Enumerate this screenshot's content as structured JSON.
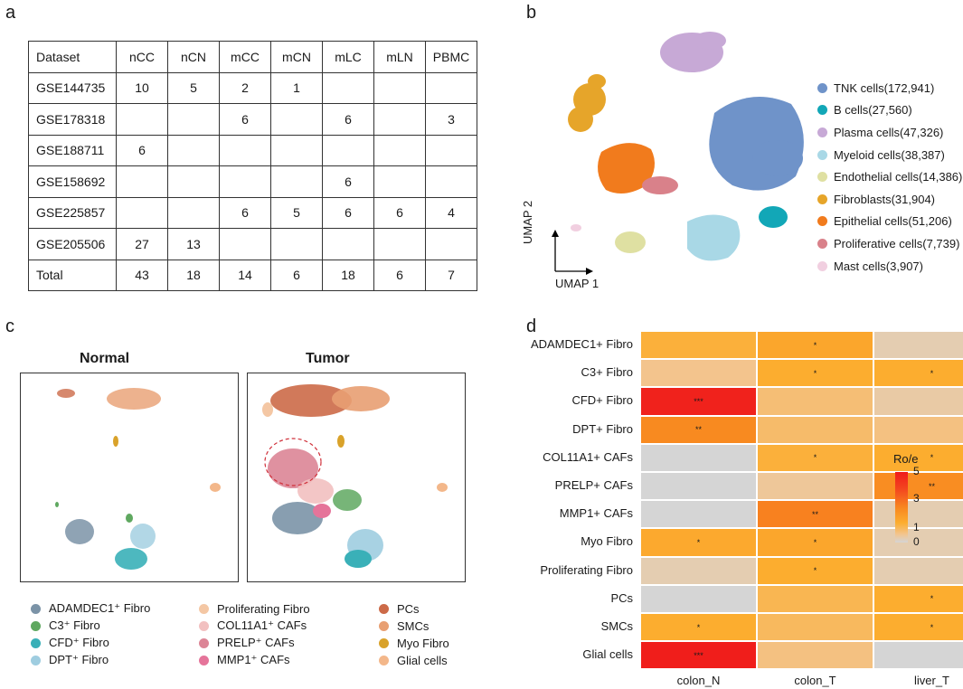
{
  "panels": {
    "a": "a",
    "b": "b",
    "c": "c",
    "d": "d"
  },
  "table": {
    "headers": [
      "Dataset",
      "nCC",
      "nCN",
      "mCC",
      "mCN",
      "mLC",
      "mLN",
      "PBMC"
    ],
    "rows": [
      [
        "GSE144735",
        "10",
        "5",
        "2",
        "1",
        "",
        "",
        ""
      ],
      [
        "GSE178318",
        "",
        "",
        "6",
        "",
        "6",
        "",
        "3"
      ],
      [
        "GSE188711",
        "6",
        "",
        "",
        "",
        "",
        "",
        ""
      ],
      [
        "GSE158692",
        "",
        "",
        "",
        "",
        "6",
        "",
        ""
      ],
      [
        "GSE225857",
        "",
        "",
        "6",
        "5",
        "6",
        "6",
        "4"
      ],
      [
        "GSE205506",
        "27",
        "13",
        "",
        "",
        "",
        "",
        ""
      ],
      [
        "Total",
        "43",
        "18",
        "14",
        "6",
        "18",
        "6",
        "7"
      ]
    ]
  },
  "umap_b": {
    "xlabel": "UMAP 1",
    "ylabel": "UMAP 2",
    "legend": [
      {
        "label": "TNK cells(172,941)",
        "color": "#6f93c9"
      },
      {
        "label": "B cells(27,560)",
        "color": "#12a7b7"
      },
      {
        "label": "Plasma cells(47,326)",
        "color": "#c7a9d6"
      },
      {
        "label": "Myeloid cells(38,387)",
        "color": "#a9d8e6"
      },
      {
        "label": "Endothelial cells(14,386)",
        "color": "#dfe0a2"
      },
      {
        "label": "Fibroblasts(31,904)",
        "color": "#e6a52a"
      },
      {
        "label": "Epithelial cells(51,206)",
        "color": "#f17b1d"
      },
      {
        "label": "Proliferative cells(7,739)",
        "color": "#d9818a"
      },
      {
        "label": "Mast cells(3,907)",
        "color": "#f1cfe0"
      }
    ]
  },
  "panel_c": {
    "titles": {
      "normal": "Normal",
      "tumor": "Tumor"
    },
    "legend": [
      {
        "label": "ADAMDEC1⁺ Fibro",
        "color": "#7b93a7"
      },
      {
        "label": "C3⁺ Fibro",
        "color": "#5fa860"
      },
      {
        "label": "CFD⁺ Fibro",
        "color": "#3ab0b8"
      },
      {
        "label": "DPT⁺ Fibro",
        "color": "#9fcde0"
      },
      {
        "label": "Proliferating Fibro",
        "color": "#f4c7a4"
      },
      {
        "label": "COL11A1⁺ CAFs",
        "color": "#f2c0c0"
      },
      {
        "label": "PRELP⁺ CAFs",
        "color": "#dc8596"
      },
      {
        "label": "MMP1⁺ CAFs",
        "color": "#e5749a"
      },
      {
        "label": "PCs",
        "color": "#cc6a48"
      },
      {
        "label": "SMCs",
        "color": "#e89f72"
      },
      {
        "label": "Myo Fibro",
        "color": "#d9a22a"
      },
      {
        "label": "Glial cells",
        "color": "#f3b78a"
      }
    ]
  },
  "heatmap": {
    "rows": [
      "ADAMDEC1+ Fibro",
      "C3+ Fibro",
      "CFD+ Fibro",
      "DPT+ Fibro",
      "COL11A1+ CAFs",
      "PRELP+ CAFs",
      "MMP1+ CAFs",
      "Myo Fibro",
      "Proliferating Fibro",
      "PCs",
      "SMCs",
      "Glial cells"
    ],
    "cols": [
      "colon_N",
      "colon_T",
      "liver_T"
    ],
    "values": [
      [
        1.3,
        1.6,
        0.3
      ],
      [
        0.6,
        1.4,
        1.4
      ],
      [
        4.8,
        0.8,
        0.4
      ],
      [
        2.4,
        0.9,
        0.7
      ],
      [
        0.0,
        1.3,
        1.4
      ],
      [
        0.0,
        0.5,
        2.3
      ],
      [
        0.0,
        2.6,
        0.3
      ],
      [
        1.5,
        1.6,
        0.3
      ],
      [
        0.3,
        1.4,
        0.3
      ],
      [
        0.0,
        1.1,
        1.4
      ],
      [
        1.4,
        1.0,
        1.4
      ],
      [
        4.9,
        0.7,
        0.0
      ]
    ],
    "significance": [
      [
        "",
        "*",
        ""
      ],
      [
        "",
        "*",
        "*"
      ],
      [
        "***",
        "",
        ""
      ],
      [
        "**",
        "",
        ""
      ],
      [
        "",
        "*",
        "*"
      ],
      [
        "",
        "",
        "**"
      ],
      [
        "",
        "**",
        ""
      ],
      [
        "*",
        "*",
        ""
      ],
      [
        "",
        "*",
        ""
      ],
      [
        "",
        "",
        "*"
      ],
      [
        "*",
        "",
        "*"
      ],
      [
        "***",
        "",
        ""
      ]
    ],
    "colorbar": {
      "title": "Ro/e",
      "ticks": [
        "5",
        "3",
        "1",
        "0"
      ]
    }
  }
}
